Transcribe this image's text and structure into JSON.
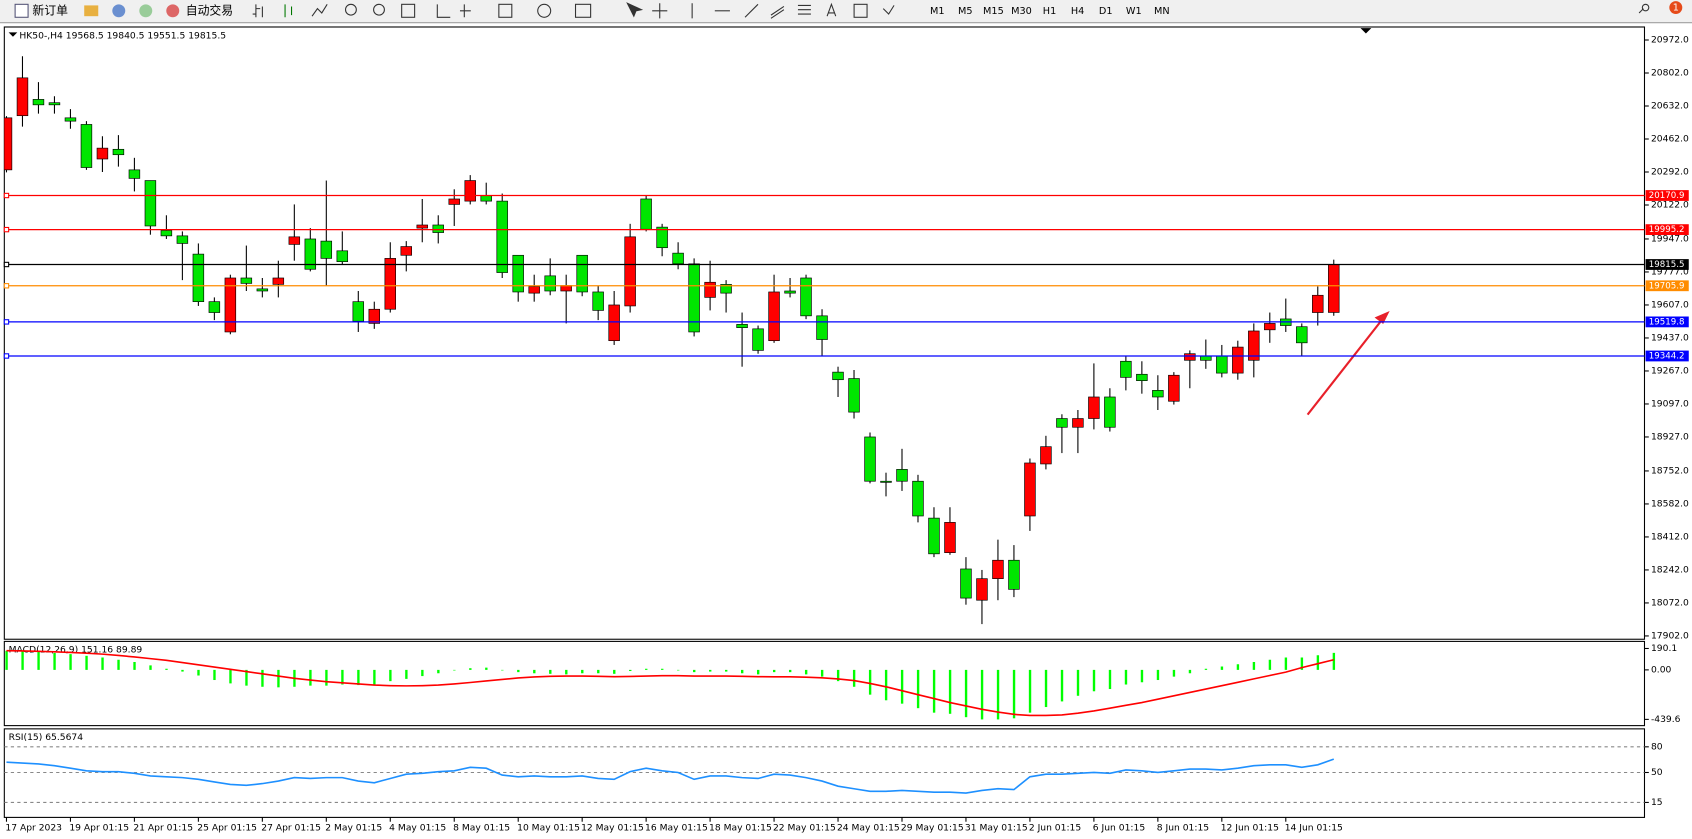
{
  "toolbar": {
    "buttons": [
      "新订单",
      "自动交易"
    ],
    "timeframes": [
      "M1",
      "M5",
      "M15",
      "M30",
      "H1",
      "H4",
      "D1",
      "W1",
      "MN"
    ],
    "badge": 1
  },
  "chart_data": {
    "type": "candlestick",
    "title": "HK50-,H4",
    "categories": [
      "17 Apr 2023",
      null,
      null,
      null,
      "19 Apr 01:15",
      null,
      null,
      null,
      "21 Apr 01:15",
      null,
      null,
      null,
      "25 Apr 01:15",
      null,
      null,
      null,
      "27 Apr 01:15",
      null,
      null,
      null,
      "2 May 01:15",
      null,
      null,
      null,
      "4 May 01:15",
      null,
      null,
      null,
      "8 May 01:15",
      null,
      null,
      null,
      "10 May 01:15",
      null,
      null,
      null,
      "12 May 01:15",
      null,
      null,
      null,
      "16 May 01:15",
      null,
      null,
      null,
      "18 May 01:15",
      null,
      null,
      null,
      "22 May 01:15",
      null,
      null,
      null,
      "24 May 01:15",
      null,
      null,
      null,
      "29 May 01:15",
      null,
      null,
      null,
      "31 May 01:15",
      null,
      null,
      null,
      "2 Jun 01:15",
      null,
      null,
      null,
      "6 Jun 01:15",
      null,
      null,
      null,
      "8 Jun 01:15",
      null,
      null,
      null,
      "12 Jun 01:15",
      null,
      null,
      null,
      "14 Jun 01:15",
      null,
      null,
      null
    ],
    "open": [
      20303,
      20582,
      20666,
      20649,
      20571,
      20537,
      20359,
      20409,
      20303,
      20248,
      19991,
      19963,
      19869,
      19624,
      19468,
      19746,
      19690,
      19713,
      19919,
      19947,
      19936,
      19886,
      19624,
      19512,
      19585,
      19863,
      20003,
      20019,
      20125,
      20142,
      20170,
      20142,
      19863,
      19668,
      19757,
      19679,
      19863,
      19674,
      19423,
      19602,
      20153,
      20008,
      19874,
      19819,
      19646,
      19713,
      19507,
      19484,
      19423,
      19679,
      19746,
      19551,
      19261,
      19228,
      18927,
      18699,
      18760,
      18699,
      18509,
      18331,
      18247,
      18086,
      18197,
      18292,
      18520,
      18788,
      19022,
      18977,
      19022,
      19133,
      19317,
      19250,
      19167,
      19111,
      19322,
      19345,
      19345,
      19256,
      19322,
      19479,
      19535,
      19495,
      19568,
      19568.5
    ],
    "high": [
      20580,
      20888,
      20755,
      20682,
      20616,
      20554,
      20476,
      20482,
      20365,
      20248,
      20069,
      19986,
      19924,
      19646,
      19763,
      19913,
      19746,
      19835,
      20125,
      20003,
      20248,
      19986,
      19679,
      19624,
      19930,
      19936,
      20153,
      20069,
      20203,
      20276,
      20237,
      20181,
      19863,
      19763,
      19847,
      19763,
      19863,
      19707,
      19679,
      20025,
      20170,
      20025,
      19930,
      19847,
      19835,
      19735,
      19568,
      19501,
      19763,
      19746,
      19763,
      19585,
      19289,
      19272,
      18950,
      18743,
      18866,
      18732,
      18565,
      18565,
      18308,
      18242,
      18398,
      18370,
      18816,
      18933,
      19044,
      19066,
      19306,
      19178,
      19345,
      19317,
      19245,
      19261,
      19373,
      19429,
      19401,
      19423,
      19512,
      19568,
      19640,
      19512,
      19702,
      19840.5
    ],
    "low": [
      20290,
      20526,
      20593,
      20593,
      20515,
      20303,
      20292,
      20320,
      20192,
      19969,
      19947,
      19735,
      19602,
      19529,
      19456,
      19679,
      19646,
      19646,
      19835,
      19780,
      19707,
      19813,
      19468,
      19484,
      19568,
      19780,
      19930,
      19924,
      20014,
      20125,
      20125,
      19746,
      19624,
      19624,
      19657,
      19512,
      19652,
      19529,
      19401,
      19568,
      19986,
      19858,
      19791,
      19445,
      19579,
      19568,
      19289,
      19356,
      19412,
      19646,
      19534,
      19345,
      19133,
      19022,
      18688,
      18621,
      18649,
      18487,
      18308,
      18320,
      18063,
      17963,
      18086,
      18102,
      18443,
      18760,
      18844,
      18844,
      18966,
      18955,
      19167,
      19150,
      19066,
      19094,
      19178,
      19278,
      19234,
      19222,
      19234,
      19412,
      19468,
      19345,
      19501,
      19551.5
    ],
    "close": [
      20571,
      20777,
      20638,
      20638,
      20554,
      20315,
      20415,
      20381,
      20259,
      20014,
      19963,
      19924,
      19624,
      19568,
      19746,
      19718,
      19679,
      19746,
      19958,
      19791,
      19847,
      19830,
      19523,
      19585,
      19847,
      19908,
      20019,
      19980,
      20153,
      20248,
      20142,
      19774,
      19674,
      19702,
      19679,
      19707,
      19674,
      19579,
      19607,
      19958,
      19997,
      19902,
      19819,
      19468,
      19724,
      19668,
      19490,
      19373,
      19674,
      19668,
      19551,
      19429,
      19222,
      19055,
      18699,
      18693,
      18699,
      18520,
      18325,
      18487,
      18097,
      18197,
      18292,
      18142,
      18793,
      18877,
      18977,
      19022,
      19133,
      18977,
      19234,
      19217,
      19133,
      19245,
      19356,
      19322,
      19256,
      19390,
      19473,
      19512,
      19501,
      19412,
      19657,
      19815.5
    ],
    "up_color": "#ff0000",
    "down_color": "#00e600",
    "ylim": [
      17885,
      21039
    ],
    "yticks": [
      {
        "value": 20972,
        "label": "20972.0"
      },
      {
        "value": 20802,
        "label": "20802.0"
      },
      {
        "value": 20632,
        "label": "20632.0"
      },
      {
        "value": 20462,
        "label": "20462.0"
      },
      {
        "value": 20292,
        "label": "20292.0"
      },
      {
        "value": 20122,
        "label": "20122.0"
      },
      {
        "value": 19947,
        "label": "19947.0"
      },
      {
        "value": 19777,
        "label": "19777.0"
      },
      {
        "value": 19607,
        "label": "19607.0"
      },
      {
        "value": 19437,
        "label": "19437.0"
      },
      {
        "value": 19267,
        "label": "19267.0"
      },
      {
        "value": 19097,
        "label": "19097.0"
      },
      {
        "value": 18927,
        "label": "18927.0"
      },
      {
        "value": 18752,
        "label": "18752.0"
      },
      {
        "value": 18582,
        "label": "18582.0"
      },
      {
        "value": 18412,
        "label": "18412.0"
      },
      {
        "value": 18242,
        "label": "18242.0"
      },
      {
        "value": 18072,
        "label": "18072.0"
      },
      {
        "value": 17902,
        "label": "17902.0"
      }
    ],
    "grid": false,
    "levels": [
      {
        "value": 20170.9,
        "color": "#ff0000"
      },
      {
        "value": 19995.2,
        "color": "#ff0000"
      },
      {
        "value": 19815.5,
        "color": "#000000"
      },
      {
        "value": 19705.9,
        "color": "#ff8c00"
      },
      {
        "value": 19519.8,
        "color": "#0000ff"
      },
      {
        "value": 19344.2,
        "color": "#0000ff"
      }
    ],
    "macd": {
      "title": "MACD(12,26,9) 151.16 89.89",
      "hist_color": "#00ff00",
      "signal_color": "#ff0000",
      "hist": [
        170,
        165,
        160,
        150,
        140,
        125,
        110,
        90,
        70,
        40,
        10,
        -15,
        -50,
        -90,
        -120,
        -140,
        -150,
        -155,
        -150,
        -140,
        -140,
        -130,
        -135,
        -130,
        -100,
        -80,
        -55,
        -30,
        -5,
        15,
        20,
        0,
        -20,
        -30,
        -35,
        -40,
        -30,
        -30,
        -35,
        -10,
        10,
        10,
        0,
        -20,
        -15,
        -15,
        -30,
        -40,
        -20,
        -20,
        -40,
        -60,
        -100,
        -150,
        -220,
        -270,
        -300,
        -340,
        -380,
        -390,
        -420,
        -440,
        -440,
        -430,
        -380,
        -330,
        -280,
        -230,
        -190,
        -170,
        -130,
        -110,
        -90,
        -60,
        -30,
        10,
        30,
        50,
        70,
        90,
        110,
        110,
        130,
        151.16
      ],
      "signal": [
        170,
        168,
        165,
        160,
        155,
        148,
        140,
        128,
        115,
        100,
        85,
        65,
        45,
        25,
        5,
        -15,
        -35,
        -55,
        -75,
        -90,
        -105,
        -115,
        -125,
        -135,
        -140,
        -142,
        -140,
        -135,
        -125,
        -112,
        -98,
        -85,
        -72,
        -63,
        -57,
        -55,
        -55,
        -57,
        -60,
        -58,
        -55,
        -52,
        -52,
        -55,
        -55,
        -55,
        -57,
        -60,
        -62,
        -62,
        -65,
        -70,
        -80,
        -95,
        -120,
        -150,
        -185,
        -220,
        -255,
        -290,
        -320,
        -350,
        -375,
        -395,
        -405,
        -405,
        -400,
        -385,
        -365,
        -340,
        -315,
        -290,
        -260,
        -230,
        -200,
        -170,
        -140,
        -110,
        -80,
        -50,
        -20,
        20,
        55,
        89.89
      ],
      "ylim": [
        -495,
        253
      ],
      "yticks": [
        190.1,
        {
          "value": 0,
          "label": "0.00"
        },
        -439.6
      ]
    },
    "rsi": {
      "title": "RSI(15) 65.5674",
      "color": "#1e90ff",
      "values": [
        62,
        61,
        60,
        58,
        55,
        52,
        51,
        51,
        49,
        46,
        45,
        44,
        42,
        39,
        36,
        35,
        37,
        40,
        44,
        43,
        44,
        44,
        40,
        38,
        43,
        48,
        49,
        51,
        52,
        56,
        55,
        47,
        45,
        46,
        45,
        45,
        46,
        43,
        42,
        51,
        55,
        52,
        50,
        42,
        46,
        46,
        44,
        43,
        48,
        47,
        44,
        40,
        34,
        31,
        28,
        28,
        29,
        28,
        27,
        27,
        26,
        29,
        31,
        30,
        45,
        48,
        48,
        49,
        50,
        49,
        53,
        52,
        50,
        52,
        54,
        54,
        53,
        55,
        58,
        59,
        59,
        56,
        59,
        65.5674
      ],
      "ylim": [
        -2.5,
        101
      ],
      "yticks": [
        80,
        50,
        15
      ]
    }
  }
}
